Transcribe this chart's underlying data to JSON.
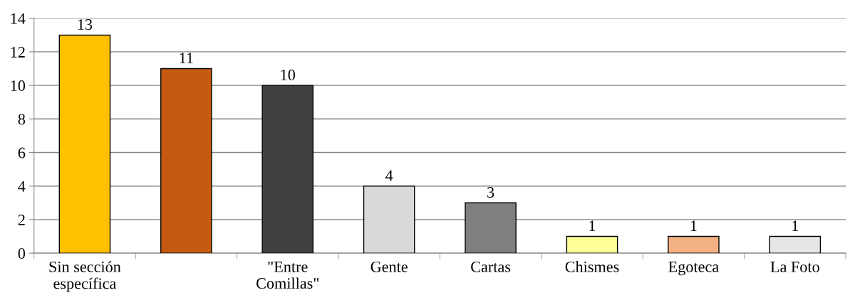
{
  "chart_data": {
    "type": "bar",
    "categories": [
      "Sin sección específica",
      null,
      "\"Entre Comillas\"",
      "Gente",
      "Cartas",
      "Chismes",
      "Egoteca",
      "La Foto"
    ],
    "values": [
      13,
      11,
      10,
      4,
      3,
      1,
      1,
      1
    ],
    "colors": [
      "#ffc000",
      "#c55a11",
      "#404040",
      "#d9d9d9",
      "#7f7f7f",
      "#ffff99",
      "#f4b183",
      "#e7e6e6"
    ],
    "ylim": [
      0,
      14
    ],
    "yticks": [
      0,
      2,
      4,
      6,
      8,
      10,
      12,
      14
    ],
    "grid": "y",
    "data_labels": true,
    "legend": false
  }
}
